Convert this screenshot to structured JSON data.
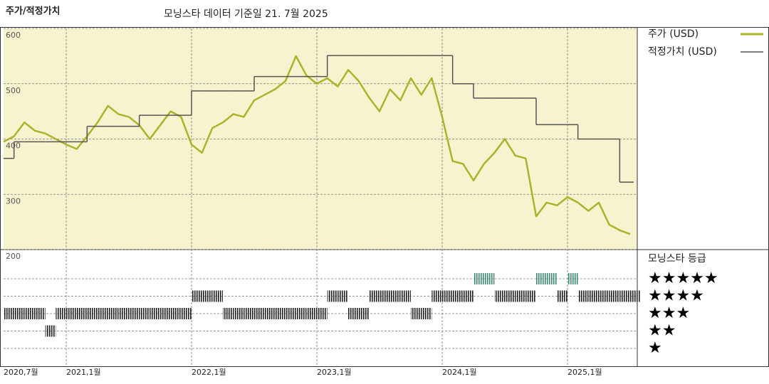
{
  "chart_data": {
    "type": "line",
    "title": "주가/적정가치",
    "subtitle": "모닝스타 데이터 기준일 21. 7월 2025",
    "x": [
      "2020-07",
      "2020-08",
      "2020-09",
      "2020-10",
      "2020-11",
      "2020-12",
      "2021-01",
      "2021-02",
      "2021-03",
      "2021-04",
      "2021-05",
      "2021-06",
      "2021-07",
      "2021-08",
      "2021-09",
      "2021-10",
      "2021-11",
      "2021-12",
      "2022-01",
      "2022-02",
      "2022-03",
      "2022-04",
      "2022-05",
      "2022-06",
      "2022-07",
      "2022-08",
      "2022-09",
      "2022-10",
      "2022-11",
      "2022-12",
      "2023-01",
      "2023-02",
      "2023-03",
      "2023-04",
      "2023-05",
      "2023-06",
      "2023-07",
      "2023-08",
      "2023-09",
      "2023-10",
      "2023-11",
      "2023-12",
      "2024-01",
      "2024-02",
      "2024-03",
      "2024-04",
      "2024-05",
      "2024-06",
      "2024-07",
      "2024-08",
      "2024-09",
      "2024-10",
      "2024-11",
      "2024-12",
      "2025-01",
      "2025-02",
      "2025-03",
      "2025-04",
      "2025-05",
      "2025-06",
      "2025-07"
    ],
    "xticks": [
      {
        "value": "2020-07",
        "label": "2020,7월"
      },
      {
        "value": "2021-01",
        "label": "2021,1월"
      },
      {
        "value": "2022-01",
        "label": "2022,1월"
      },
      {
        "value": "2023-01",
        "label": "2023,1월"
      },
      {
        "value": "2024-01",
        "label": "2024,1월"
      },
      {
        "value": "2025-01",
        "label": "2025,1월"
      }
    ],
    "ylim": [
      200,
      600
    ],
    "yticks": [
      200,
      300,
      400,
      500,
      600
    ],
    "grid": true,
    "series": [
      {
        "name": "주가 (USD)",
        "color": "#a9b42c",
        "values": [
          395,
          405,
          430,
          415,
          410,
          400,
          390,
          382,
          405,
          430,
          460,
          445,
          440,
          425,
          400,
          425,
          450,
          440,
          390,
          375,
          420,
          430,
          445,
          440,
          470,
          480,
          490,
          505,
          550,
          515,
          500,
          510,
          495,
          525,
          505,
          475,
          450,
          490,
          470,
          510,
          480,
          510,
          440,
          360,
          355,
          325,
          355,
          375,
          400,
          370,
          365,
          260,
          285,
          280,
          295,
          285,
          270,
          285,
          245,
          235,
          228
        ]
      },
      {
        "name": "적정가치 (USD)",
        "color": "#555555",
        "step": true,
        "values": [
          365,
          395,
          395,
          395,
          395,
          395,
          395,
          395,
          423,
          423,
          423,
          423,
          423,
          443,
          443,
          443,
          443,
          443,
          487,
          487,
          487,
          487,
          487,
          487,
          513,
          513,
          513,
          513,
          513,
          513,
          513,
          551,
          551,
          551,
          551,
          551,
          551,
          551,
          551,
          551,
          551,
          551,
          551,
          500,
          500,
          474,
          474,
          474,
          474,
          474,
          474,
          426,
          426,
          426,
          426,
          400,
          400,
          400,
          400,
          322,
          322
        ]
      }
    ],
    "ratings": {
      "name": "모닝스타 등급",
      "color": "#222222",
      "highlight_color": "#3d8b6e",
      "ticks": [
        {
          "value": 5,
          "label": "★★★★★"
        },
        {
          "value": 4,
          "label": "★★★★"
        },
        {
          "value": 3,
          "label": "★★★"
        },
        {
          "value": 2,
          "label": "★★"
        },
        {
          "value": 1,
          "label": "★"
        }
      ],
      "values": [
        3,
        3,
        3,
        3,
        2,
        3,
        3,
        3,
        3,
        3,
        3,
        3,
        3,
        3,
        3,
        3,
        3,
        3,
        4,
        4,
        4,
        3,
        3,
        3,
        3,
        3,
        3,
        3,
        3,
        3,
        3,
        4,
        4,
        3,
        3,
        4,
        4,
        4,
        4,
        3,
        3,
        4,
        4,
        4,
        4,
        5,
        5,
        4,
        4,
        4,
        4,
        5,
        5,
        4,
        5,
        4,
        4,
        4,
        4,
        4,
        4
      ]
    }
  }
}
